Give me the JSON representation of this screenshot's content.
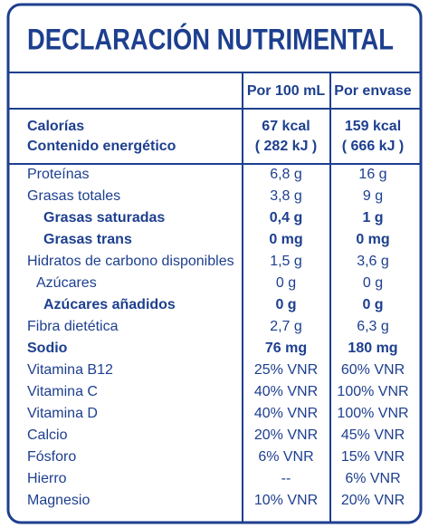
{
  "title": "DECLARACIÓN NUTRIMENTAL",
  "header": {
    "per_100": "Por 100 mL",
    "per_package": "Por envase"
  },
  "energy": {
    "labels": [
      "Calorías",
      "Contenido energético"
    ],
    "per_100": [
      "67 kcal",
      "( 282 kJ )"
    ],
    "per_package": [
      "159 kcal",
      "( 666 kJ )"
    ]
  },
  "table": {
    "rows": [
      [
        "Proteínas",
        "6,8 g",
        "16 g"
      ],
      [
        "Grasas totales",
        "3,8 g",
        "9 g"
      ],
      [
        "Grasas saturadas",
        "0,4 g",
        "1 g"
      ],
      [
        "Grasas trans",
        "0 mg",
        "0 mg"
      ],
      [
        "Hidratos de carbono disponibles",
        "1,5 g",
        "3,6 g"
      ],
      [
        "Azúcares",
        "0 g",
        "0 g"
      ],
      [
        "Azúcares añadidos",
        "0 g",
        "0 g"
      ],
      [
        "Fibra dietética",
        "2,7 g",
        "6,3 g"
      ],
      [
        "Sodio",
        "76 mg",
        "180 mg"
      ],
      [
        "Vitamina B12",
        "25% VNR",
        "60% VNR"
      ],
      [
        "Vitamina C",
        "40% VNR",
        "100% VNR"
      ],
      [
        "Vitamina D",
        "40% VNR",
        "100% VNR"
      ],
      [
        "Calcio",
        "20% VNR",
        "45% VNR"
      ],
      [
        "Fósforo",
        "6% VNR",
        "15% VNR"
      ],
      [
        "Hierro",
        "--",
        "6% VNR"
      ],
      [
        "Magnesio",
        "10% VNR",
        "20% VNR"
      ]
    ]
  }
}
